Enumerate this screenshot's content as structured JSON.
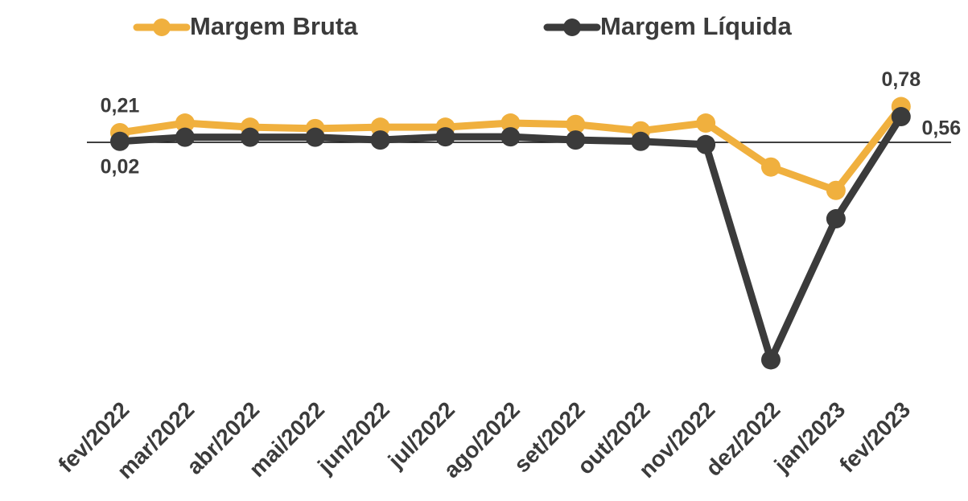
{
  "chart_data": {
    "type": "line",
    "categories": [
      "fev/2022",
      "mar/2022",
      "abr/2022",
      "mai/2022",
      "jun/2022",
      "jul/2022",
      "ago/2022",
      "set/2022",
      "out/2022",
      "nov/2022",
      "dez/2022",
      "jan/2023",
      "fev/2023"
    ],
    "series": [
      {
        "name": "Margem Bruta",
        "color": "#f0b03e",
        "values": [
          0.21,
          0.42,
          0.33,
          0.3,
          0.33,
          0.33,
          0.42,
          0.39,
          0.25,
          0.42,
          -0.54,
          -1.05,
          0.78
        ],
        "value_labels": [
          "0,21",
          null,
          null,
          null,
          null,
          null,
          null,
          null,
          null,
          null,
          null,
          null,
          "0,78"
        ]
      },
      {
        "name": "Margem Líquida",
        "color": "#3b3b3b",
        "values": [
          0.02,
          0.11,
          0.11,
          0.11,
          0.05,
          0.12,
          0.12,
          0.05,
          0.02,
          -0.05,
          -4.75,
          -1.67,
          0.56
        ],
        "value_labels": [
          "0,02",
          null,
          null,
          null,
          null,
          null,
          null,
          null,
          null,
          null,
          null,
          null,
          "0,56"
        ]
      }
    ],
    "ylim": [
      -4.9,
      1.0
    ],
    "legend": "top"
  }
}
